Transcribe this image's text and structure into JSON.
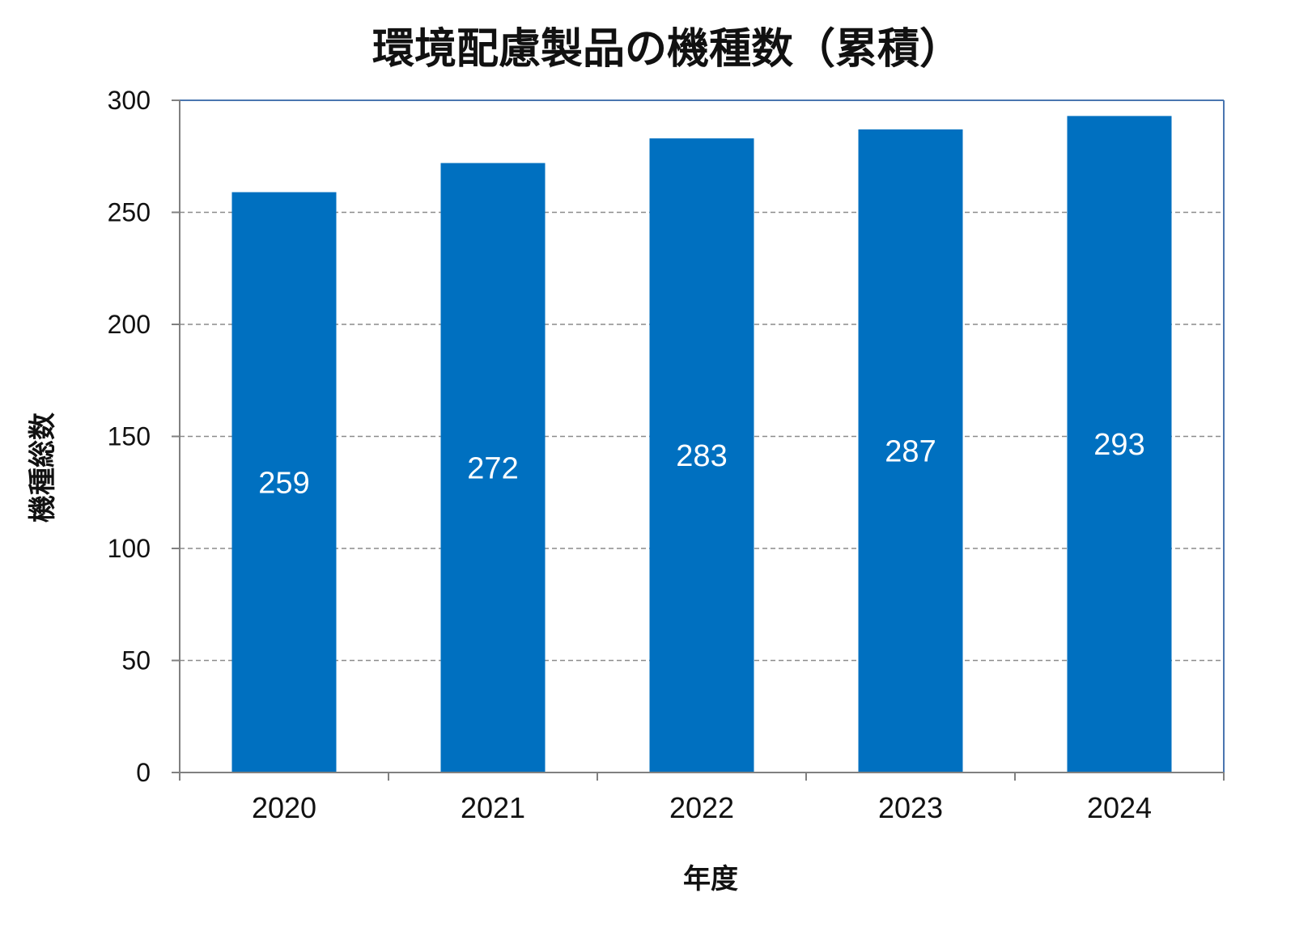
{
  "chart_data": {
    "type": "bar",
    "title": "環境配慮製品の機種数（累積）",
    "xlabel": "年度",
    "ylabel": "機種総数",
    "categories": [
      "2020",
      "2021",
      "2022",
      "2023",
      "2024"
    ],
    "values": [
      259,
      272,
      283,
      287,
      293
    ],
    "data_labels": [
      "259",
      "272",
      "283",
      "287",
      "293"
    ],
    "y_ticks": [
      0,
      50,
      100,
      150,
      200,
      250,
      300
    ],
    "y_tick_labels": [
      "0",
      "50",
      "100",
      "150",
      "200",
      "250",
      "300"
    ],
    "ylim": [
      0,
      300
    ],
    "grid": "horizontal dashed",
    "legend": "none",
    "colors": {
      "bar": "#0070c0",
      "plot_border": "#4a76b0",
      "grid": "#8c8c8c",
      "axis": "#808080",
      "data_label": "#ffffff",
      "text": "#111111"
    }
  }
}
